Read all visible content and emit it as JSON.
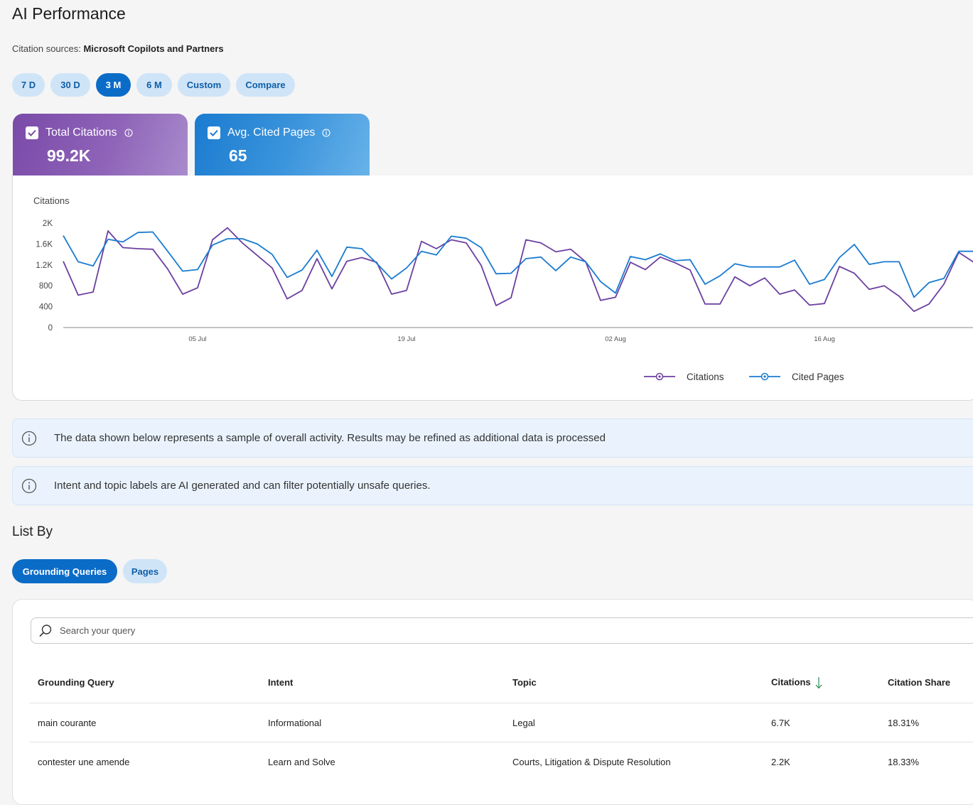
{
  "page": {
    "title": "AI Performance"
  },
  "citation_sources": {
    "label": "Citation sources:",
    "value": "Microsoft Copilots and Partners"
  },
  "range_pills": [
    {
      "label": "7 D",
      "active": false
    },
    {
      "label": "30 D",
      "active": false
    },
    {
      "label": "3 M",
      "active": true
    },
    {
      "label": "6 M",
      "active": false
    },
    {
      "label": "Custom",
      "active": false
    },
    {
      "label": "Compare",
      "active": false
    }
  ],
  "metrics": {
    "citations": {
      "label": "Total Citations",
      "value": "99.2K",
      "checked": true,
      "color": "#7a4aa8"
    },
    "pages": {
      "label": "Avg. Cited Pages",
      "value": "65",
      "checked": true,
      "color": "#1a7bd0"
    }
  },
  "chart_data": {
    "type": "line",
    "ylabel": "Citations",
    "ylim": [
      0,
      2000
    ],
    "y_ticks": [
      "0",
      "400",
      "800",
      "1.2K",
      "1.6K",
      "2K"
    ],
    "y_tick_values": [
      0,
      400,
      800,
      1200,
      1600,
      2000
    ],
    "x_ticks": [
      "05 Jul",
      "19 Jul",
      "02 Aug",
      "16 Aug"
    ],
    "x_tick_index": [
      9,
      23,
      37,
      51
    ],
    "legend_position": "bottom",
    "series": [
      {
        "name": "Citations",
        "color": "#6b3fa0",
        "values": [
          1270,
          620,
          680,
          1850,
          1530,
          1510,
          1500,
          1120,
          640,
          760,
          1680,
          1910,
          1620,
          1380,
          1140,
          550,
          710,
          1320,
          740,
          1270,
          1340,
          1250,
          640,
          710,
          1650,
          1510,
          1680,
          1620,
          1190,
          420,
          570,
          1680,
          1620,
          1450,
          1500,
          1260,
          520,
          580,
          1250,
          1110,
          1350,
          1240,
          1100,
          450,
          450,
          970,
          800,
          950,
          640,
          720,
          430,
          460,
          1170,
          1040,
          730,
          800,
          600,
          310,
          450,
          830,
          1440,
          1250
        ]
      },
      {
        "name": "Cited Pages",
        "color": "#1a7bd0",
        "values": [
          1760,
          1260,
          1180,
          1690,
          1640,
          1820,
          1830,
          1460,
          1080,
          1110,
          1580,
          1700,
          1700,
          1600,
          1400,
          960,
          1100,
          1480,
          980,
          1540,
          1510,
          1230,
          930,
          1140,
          1460,
          1390,
          1750,
          1710,
          1530,
          1030,
          1040,
          1320,
          1350,
          1090,
          1350,
          1260,
          880,
          660,
          1360,
          1300,
          1410,
          1280,
          1300,
          830,
          990,
          1220,
          1160,
          1160,
          1160,
          1290,
          830,
          920,
          1340,
          1590,
          1210,
          1260,
          1260,
          580,
          860,
          940,
          1460,
          1460
        ]
      }
    ]
  },
  "banners": [
    {
      "text": "The data shown below represents a sample of overall activity. Results may be refined as additional data is processed"
    },
    {
      "text": "Intent and topic labels are AI generated and can filter potentially unsafe queries."
    }
  ],
  "list_by": {
    "title": "List By",
    "tabs": [
      {
        "label": "Grounding Queries",
        "active": true
      },
      {
        "label": "Pages",
        "active": false
      }
    ]
  },
  "search": {
    "placeholder": "Search your query",
    "value": ""
  },
  "table": {
    "columns": [
      "Grounding Query",
      "Intent",
      "Topic",
      "Citations",
      "Citation Share"
    ],
    "rows": [
      [
        "main courante",
        "Informational",
        "Legal",
        "6.7K",
        "18.31%"
      ],
      [
        "contester une amende",
        "Learn and Solve",
        "Courts, Litigation & Dispute Resolution",
        "2.2K",
        "18.33%"
      ]
    ]
  },
  "icons": {
    "info": "info-circle-icon",
    "search": "search-icon",
    "sort": "arrow-down-icon",
    "check": "checkmark-icon"
  }
}
